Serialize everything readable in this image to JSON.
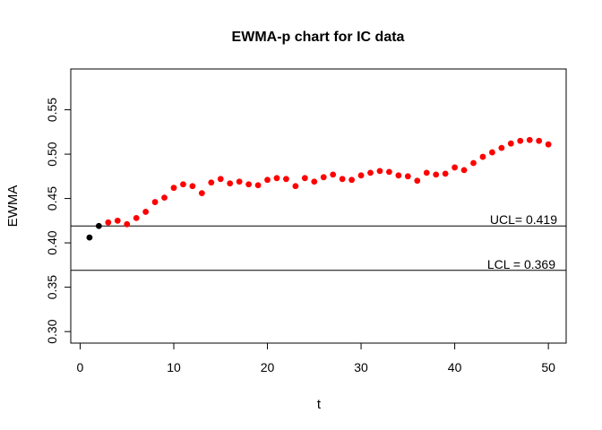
{
  "figure": {
    "title": "EWMA-p chart for IC data",
    "xlabel": "t",
    "ylabel": "EWMA"
  },
  "control_limits": {
    "ucl": {
      "label": "UCL= 0.419",
      "value": 0.419
    },
    "lcl": {
      "label": "LCL = 0.369",
      "value": 0.369
    }
  },
  "colors": {
    "point_default": "#FF0000",
    "point_start": "#000000",
    "axis": "#000000",
    "background": "#FFFFFF"
  },
  "chart_data": {
    "type": "scatter",
    "title": "EWMA-p chart for IC data",
    "xlabel": "t",
    "ylabel": "EWMA",
    "xlim": [
      -1.0,
      51.9
    ],
    "ylim": [
      0.287,
      0.596
    ],
    "grid": false,
    "legend": "none",
    "xticks": [
      0,
      10,
      20,
      30,
      40,
      50
    ],
    "xtick_labels": [
      "0",
      "10",
      "20",
      "30",
      "40",
      "50"
    ],
    "yticks": [
      0.3,
      0.35,
      0.4,
      0.45,
      0.5,
      0.55
    ],
    "ytick_labels": [
      "0.30",
      "0.35",
      "0.40",
      "0.45",
      "0.50",
      "0.55"
    ],
    "ucl": 0.419,
    "lcl": 0.369,
    "black_points_t": [
      1,
      2
    ],
    "series": [
      {
        "name": "EWMA",
        "x": [
          1,
          2,
          3,
          4,
          5,
          6,
          7,
          8,
          9,
          10,
          11,
          12,
          13,
          14,
          15,
          16,
          17,
          18,
          19,
          20,
          21,
          22,
          23,
          24,
          25,
          26,
          27,
          28,
          29,
          30,
          31,
          32,
          33,
          34,
          35,
          36,
          37,
          38,
          39,
          40,
          41,
          42,
          43,
          44,
          45,
          46,
          47,
          48,
          49,
          50
        ],
        "y": [
          0.406,
          0.419,
          0.423,
          0.425,
          0.421,
          0.428,
          0.435,
          0.446,
          0.451,
          0.462,
          0.466,
          0.464,
          0.456,
          0.468,
          0.472,
          0.467,
          0.469,
          0.466,
          0.465,
          0.471,
          0.473,
          0.472,
          0.464,
          0.473,
          0.469,
          0.474,
          0.477,
          0.472,
          0.471,
          0.476,
          0.479,
          0.481,
          0.48,
          0.476,
          0.475,
          0.47,
          0.479,
          0.477,
          0.478,
          0.485,
          0.482,
          0.49,
          0.497,
          0.502,
          0.507,
          0.512,
          0.515,
          0.516,
          0.515,
          0.511
        ]
      }
    ]
  }
}
